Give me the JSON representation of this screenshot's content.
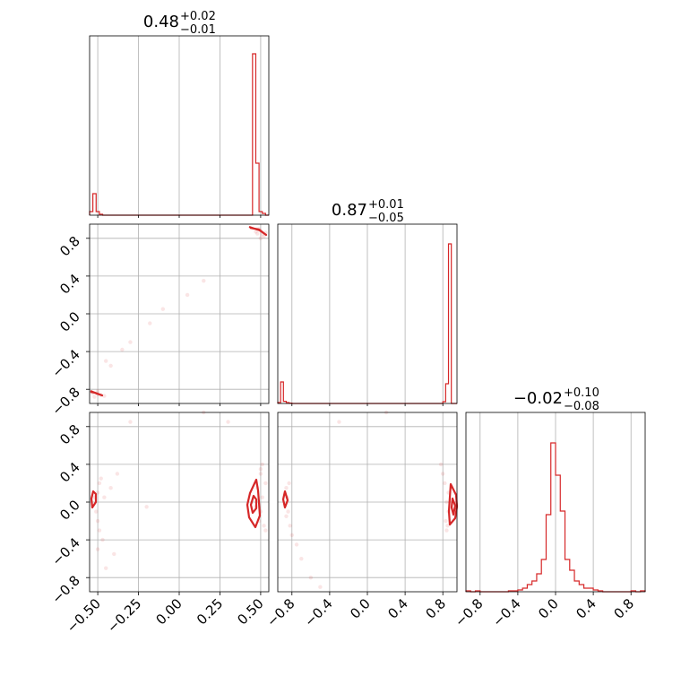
{
  "colors": {
    "series": "#d62728",
    "grid": "#b0b0b0",
    "frame": "#000000"
  },
  "chart_data": {
    "type": "corner",
    "grid": true,
    "parameters": [
      {
        "title_main": "0.48",
        "title_plus": "+0.02",
        "title_minus": "−0.01"
      },
      {
        "title_main": "0.87",
        "title_plus": "+0.01",
        "title_minus": "−0.05"
      },
      {
        "title_main": "−0.02",
        "title_plus": "+0.10",
        "title_minus": "−0.08"
      }
    ],
    "axes": {
      "p0_range": [
        -0.55,
        0.55
      ],
      "p1_range": [
        -0.95,
        0.95
      ],
      "p2_range": [
        -0.95,
        0.95
      ],
      "p0_ticks": [
        -0.5,
        -0.25,
        0.0,
        0.25,
        0.5
      ],
      "p0_tick_labels": [
        "−0.50",
        "−0.25",
        "0.00",
        "0.25",
        "0.50"
      ],
      "p1_ticks": [
        -0.8,
        -0.4,
        0.0,
        0.4,
        0.8
      ],
      "p1_tick_labels": [
        "−0.8",
        "−0.4",
        "0.0",
        "0.4",
        "0.8"
      ],
      "p2_ticks": [
        -0.8,
        -0.4,
        0.0,
        0.4,
        0.8
      ],
      "p2_tick_labels": [
        "−0.8",
        "−0.4",
        "0.0",
        "0.4",
        "0.8"
      ]
    },
    "hist_p0": {
      "edges": [
        -0.55,
        -0.53,
        -0.51,
        -0.49,
        -0.47,
        -0.45,
        -0.43,
        -0.41,
        0.45,
        0.47,
        0.49,
        0.51,
        0.53,
        0.55
      ],
      "values": [
        0.02,
        0.12,
        0.02,
        0.005,
        0.0,
        0.0,
        0.0,
        0.0,
        0.9,
        0.29,
        0.02,
        0.01,
        0.0
      ]
    },
    "hist_p1": {
      "edges": [
        -0.95,
        -0.92,
        -0.89,
        -0.86,
        -0.83,
        -0.8,
        0.8,
        0.83,
        0.86,
        0.89,
        0.92,
        0.95
      ],
      "values": [
        0.005,
        0.12,
        0.012,
        0.005,
        0.002,
        0.0,
        0.01,
        0.11,
        0.89,
        0.0,
        0.0
      ]
    },
    "hist_p2": {
      "edges": [
        -0.95,
        -0.9,
        -0.85,
        -0.8,
        -0.75,
        -0.7,
        -0.65,
        -0.6,
        -0.55,
        -0.5,
        -0.45,
        -0.4,
        -0.35,
        -0.3,
        -0.25,
        -0.2,
        -0.15,
        -0.1,
        -0.05,
        0.0,
        0.05,
        0.1,
        0.15,
        0.2,
        0.25,
        0.3,
        0.35,
        0.4,
        0.45,
        0.5,
        0.55,
        0.6,
        0.65,
        0.7,
        0.75,
        0.8,
        0.85,
        0.9,
        0.95
      ],
      "values": [
        0.005,
        0.0,
        0.005,
        0.0,
        0.0,
        0.0,
        0.0,
        0.0,
        0.0,
        0.005,
        0.005,
        0.01,
        0.02,
        0.04,
        0.06,
        0.1,
        0.18,
        0.43,
        0.83,
        0.65,
        0.45,
        0.18,
        0.12,
        0.06,
        0.04,
        0.02,
        0.02,
        0.01,
        0.005,
        0.0,
        0.0,
        0.0,
        0.0,
        0.0,
        0.0,
        0.005,
        0.0,
        0.005
      ]
    },
    "scatter_p0_p1": [
      [
        0.48,
        0.85
      ],
      [
        0.5,
        0.88
      ],
      [
        0.52,
        0.82
      ],
      [
        0.47,
        0.87
      ],
      [
        0.51,
        0.84
      ],
      [
        0.49,
        0.9
      ],
      [
        0.53,
        0.86
      ],
      [
        0.5,
        0.8
      ],
      [
        -0.5,
        -0.85
      ],
      [
        -0.52,
        -0.88
      ],
      [
        -0.48,
        -0.86
      ],
      [
        -0.5,
        -0.82
      ],
      [
        -0.46,
        -0.87
      ],
      [
        -0.53,
        -0.84
      ],
      [
        -0.42,
        -0.55
      ],
      [
        -0.45,
        -0.5
      ],
      [
        -0.3,
        -0.3
      ],
      [
        -0.18,
        -0.1
      ],
      [
        0.05,
        0.2
      ],
      [
        0.15,
        0.35
      ],
      [
        -0.35,
        -0.38
      ],
      [
        -0.1,
        0.05
      ]
    ],
    "scatter_p0_p2": [
      [
        -0.5,
        0.1
      ],
      [
        -0.49,
        0.2
      ],
      [
        -0.51,
        -0.1
      ],
      [
        -0.48,
        0.25
      ],
      [
        -0.5,
        -0.2
      ],
      [
        -0.47,
        -0.4
      ],
      [
        -0.5,
        -0.5
      ],
      [
        -0.52,
        0.05
      ],
      [
        -0.49,
        -0.3
      ],
      [
        -0.46,
        0.05
      ],
      [
        -0.4,
        -0.55
      ],
      [
        -0.45,
        -0.7
      ],
      [
        -0.38,
        0.3
      ],
      [
        -0.42,
        0.15
      ],
      [
        0.5,
        0.3
      ],
      [
        0.51,
        0.4
      ],
      [
        0.49,
        -0.2
      ],
      [
        0.52,
        -0.25
      ],
      [
        0.5,
        -0.1
      ],
      [
        0.48,
        0.15
      ],
      [
        0.53,
        0.2
      ],
      [
        0.51,
        0.05
      ],
      [
        0.47,
        -0.05
      ],
      [
        0.5,
        0.35
      ],
      [
        0.53,
        -0.3
      ],
      [
        -0.3,
        0.85
      ],
      [
        0.15,
        0.95
      ],
      [
        0.3,
        0.85
      ],
      [
        -0.2,
        -0.05
      ]
    ],
    "scatter_p1_p2": [
      [
        -0.85,
        0.05
      ],
      [
        -0.86,
        0.15
      ],
      [
        -0.84,
        -0.1
      ],
      [
        -0.83,
        0.2
      ],
      [
        -0.86,
        -0.15
      ],
      [
        -0.82,
        -0.25
      ],
      [
        -0.8,
        -0.35
      ],
      [
        -0.75,
        -0.45
      ],
      [
        -0.7,
        -0.6
      ],
      [
        -0.6,
        -0.8
      ],
      [
        -0.5,
        -0.9
      ],
      [
        0.84,
        0.0
      ],
      [
        0.86,
        0.1
      ],
      [
        0.83,
        -0.2
      ],
      [
        0.85,
        -0.25
      ],
      [
        0.8,
        0.3
      ],
      [
        0.78,
        0.4
      ],
      [
        0.82,
        0.2
      ],
      [
        0.86,
        -0.1
      ],
      [
        0.84,
        -0.3
      ],
      [
        -0.3,
        0.85
      ],
      [
        0.2,
        0.95
      ]
    ]
  }
}
